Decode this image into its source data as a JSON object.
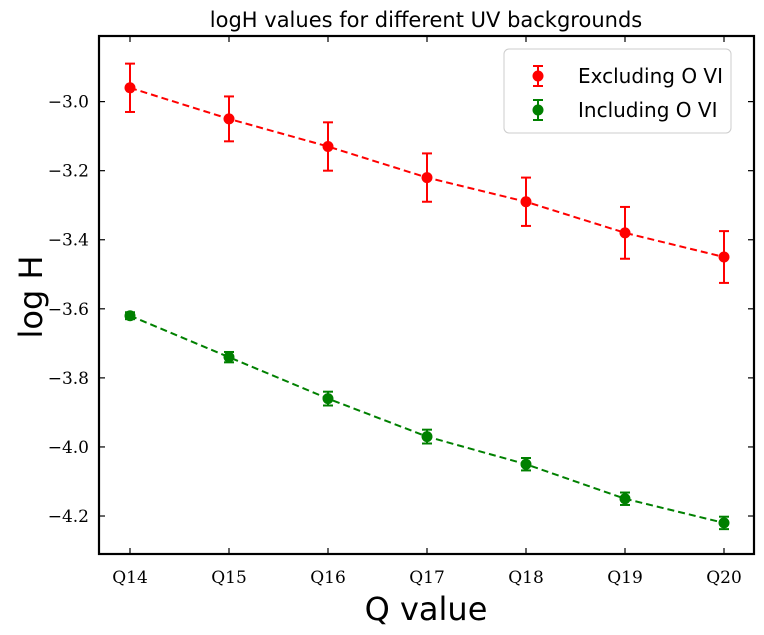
{
  "chart_data": {
    "type": "line",
    "title": "logH values for different UV backgrounds",
    "xlabel": "Q value",
    "ylabel": "log H",
    "categories": [
      "Q14",
      "Q15",
      "Q16",
      "Q17",
      "Q18",
      "Q19",
      "Q20"
    ],
    "ylim": [
      -4.31,
      -2.81
    ],
    "yticks": [
      -3.0,
      -3.2,
      -3.4,
      -3.6,
      -3.8,
      -4.0,
      -4.2
    ],
    "ytick_labels": [
      "−3.0",
      "−3.2",
      "−3.4",
      "−3.6",
      "−3.8",
      "−4.0",
      "−4.2"
    ],
    "legend_position": "top-right",
    "grid": false,
    "series": [
      {
        "name": "Excluding O VI",
        "color": "#ff0000",
        "values": [
          -2.96,
          -3.05,
          -3.13,
          -3.22,
          -3.29,
          -3.38,
          -3.45
        ],
        "errors": [
          0.07,
          0.065,
          0.07,
          0.07,
          0.07,
          0.075,
          0.075
        ]
      },
      {
        "name": "Including O VI",
        "color": "#008000",
        "values": [
          -3.62,
          -3.74,
          -3.86,
          -3.97,
          -4.05,
          -4.15,
          -4.22
        ],
        "errors": [
          0.01,
          0.015,
          0.02,
          0.02,
          0.018,
          0.018,
          0.018
        ]
      }
    ]
  }
}
